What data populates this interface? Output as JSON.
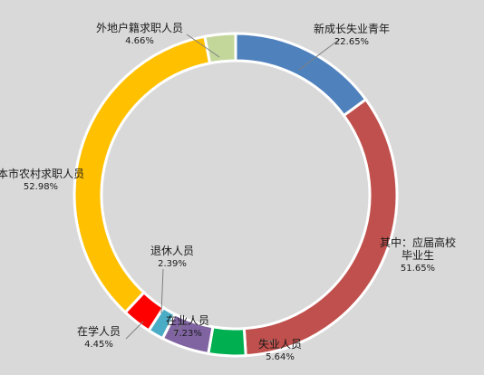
{
  "chart_data": {
    "type": "pie",
    "variant": "doughnut",
    "title": "",
    "slices": [
      {
        "label": "新成长失业青年",
        "value": 22.65,
        "value_label": "22.65%",
        "color": "#4f81bd"
      },
      {
        "label": "其中：应届高校毕业生",
        "label_lines": [
          "其中：应届高校",
          "毕业生"
        ],
        "value": 51.65,
        "value_label": "51.65%",
        "color": "#c0504d"
      },
      {
        "label": "失业人员",
        "value": 5.64,
        "value_label": "5.64%",
        "color": "#00b050"
      },
      {
        "label": "在业人员",
        "value": 7.23,
        "value_label": "7.23%",
        "color": "#8064a2"
      },
      {
        "label": "退休人员",
        "value": 2.39,
        "value_label": "2.39%",
        "color": "#4bacc6"
      },
      {
        "label": "在学人员",
        "value": 4.45,
        "value_label": "4.45%",
        "color": "#ff0000"
      },
      {
        "label": "本市农村求职人员",
        "value": 52.98,
        "value_label": "52.98%",
        "color": "#ffc000"
      },
      {
        "label": "外地户籍求职人员",
        "value": 4.66,
        "value_label": "4.66%",
        "color": "#c4d79b"
      }
    ],
    "legend": "none"
  }
}
